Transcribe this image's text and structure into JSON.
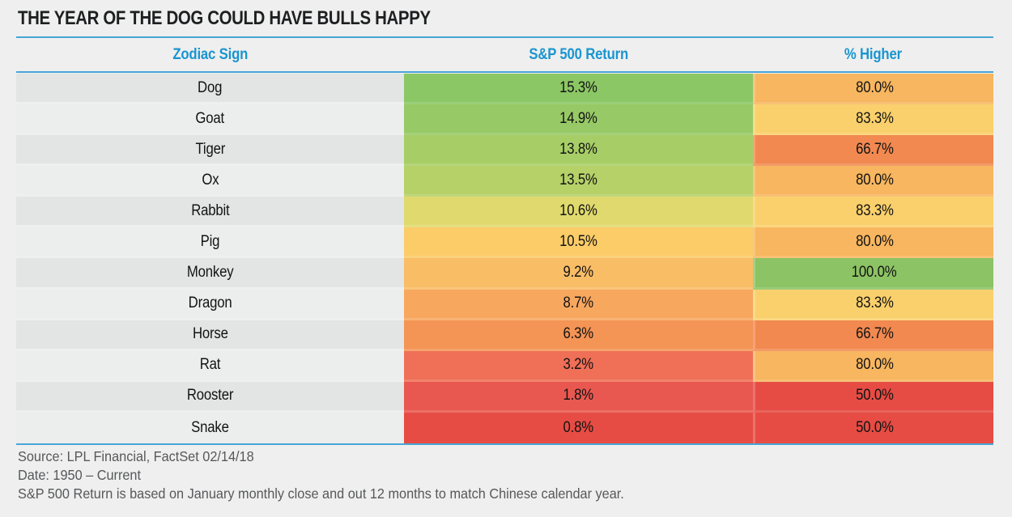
{
  "title": "THE YEAR OF THE DOG COULD HAVE BULLS HAPPY",
  "accent": {
    "page_bg": "#EFEFEF",
    "rule_blue": "#47A5D8",
    "header_blue": "#1995D0",
    "title_color": "#1E1F20",
    "footer_color": "#57585A",
    "zebra_dark": "#E3E4E4",
    "zebra_light": "#ECEDED"
  },
  "table": {
    "columns": [
      {
        "label": "Zodiac Sign"
      },
      {
        "label": "S&P 500 Return"
      },
      {
        "label": "% Higher"
      }
    ],
    "rows": [
      {
        "zodiac": "Dog",
        "return": "15.3%",
        "higher": "80.0%",
        "zodiac_bg": "#E3E4E4",
        "return_bg": "#8CC765",
        "higher_bg": "#F7B65F"
      },
      {
        "zodiac": "Goat",
        "return": "14.9%",
        "higher": "83.3%",
        "zodiac_bg": "#ECEDED",
        "return_bg": "#97CA66",
        "higher_bg": "#FAD06C"
      },
      {
        "zodiac": "Tiger",
        "return": "13.8%",
        "higher": "66.7%",
        "zodiac_bg": "#E3E4E4",
        "return_bg": "#A7CE66",
        "higher_bg": "#F18950"
      },
      {
        "zodiac": "Ox",
        "return": "13.5%",
        "higher": "80.0%",
        "zodiac_bg": "#ECEDED",
        "return_bg": "#B5D168",
        "higher_bg": "#F7B65F"
      },
      {
        "zodiac": "Rabbit",
        "return": "10.6%",
        "higher": "83.3%",
        "zodiac_bg": "#E3E4E4",
        "return_bg": "#E0DA6E",
        "higher_bg": "#FAD06C"
      },
      {
        "zodiac": "Pig",
        "return": "10.5%",
        "higher": "80.0%",
        "zodiac_bg": "#ECEDED",
        "return_bg": "#FBCC68",
        "higher_bg": "#F7B65F"
      },
      {
        "zodiac": "Monkey",
        "return": "9.2%",
        "higher": "100.0%",
        "zodiac_bg": "#E3E4E4",
        "return_bg": "#F9BD66",
        "higher_bg": "#8CC364"
      },
      {
        "zodiac": "Dragon",
        "return": "8.7%",
        "higher": "83.3%",
        "zodiac_bg": "#ECEDED",
        "return_bg": "#F8A75F",
        "higher_bg": "#FAD06C"
      },
      {
        "zodiac": "Horse",
        "return": "6.3%",
        "higher": "66.7%",
        "zodiac_bg": "#E3E4E4",
        "return_bg": "#F49455",
        "higher_bg": "#F18950"
      },
      {
        "zodiac": "Rat",
        "return": "3.2%",
        "higher": "80.0%",
        "zodiac_bg": "#ECEDED",
        "return_bg": "#EF6F57",
        "higher_bg": "#F7B65F"
      },
      {
        "zodiac": "Rooster",
        "return": "1.8%",
        "higher": "50.0%",
        "zodiac_bg": "#E3E4E4",
        "return_bg": "#E95850",
        "higher_bg": "#E64C44"
      },
      {
        "zodiac": "Snake",
        "return": "0.8%",
        "higher": "50.0%",
        "zodiac_bg": "#ECEDED",
        "return_bg": "#E74C44",
        "higher_bg": "#E64C44"
      }
    ]
  },
  "footer": {
    "lines": [
      "Source: LPL Financial, FactSet 02/14/18",
      "Date: 1950 – Current",
      "S&P 500 Return is based on January monthly close and out 12 months to match Chinese calendar year."
    ]
  },
  "chart_data": {
    "type": "table",
    "title": "THE YEAR OF THE DOG COULD HAVE BULLS HAPPY",
    "columns": [
      "Zodiac Sign",
      "S&P 500 Return",
      "% Higher"
    ],
    "rows": [
      [
        "Dog",
        15.3,
        80.0
      ],
      [
        "Goat",
        14.9,
        83.3
      ],
      [
        "Tiger",
        13.8,
        66.7
      ],
      [
        "Ox",
        13.5,
        80.0
      ],
      [
        "Rabbit",
        10.6,
        83.3
      ],
      [
        "Pig",
        10.5,
        80.0
      ],
      [
        "Monkey",
        9.2,
        100.0
      ],
      [
        "Dragon",
        8.7,
        83.3
      ],
      [
        "Horse",
        6.3,
        66.7
      ],
      [
        "Rat",
        3.2,
        80.0
      ],
      [
        "Rooster",
        1.8,
        50.0
      ],
      [
        "Snake",
        0.8,
        50.0
      ]
    ],
    "value_units": "percent",
    "color_coding": "red-yellow-green heatmap: high values green, mid yellow/orange, low red",
    "notes": [
      "Source: LPL Financial, FactSet 02/14/18",
      "Date: 1950 – Current",
      "S&P 500 Return is based on January monthly close and out 12 months to match Chinese calendar year."
    ]
  }
}
